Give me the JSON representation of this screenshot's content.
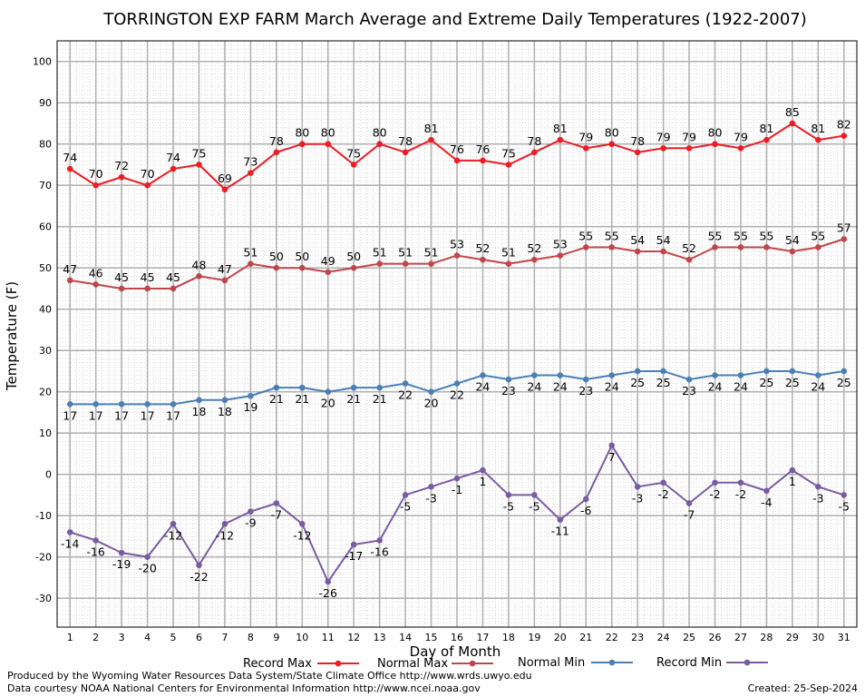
{
  "chart_data": {
    "type": "line",
    "title": "TORRINGTON EXP FARM March Average and Extreme Daily Temperatures (1922-2007)",
    "xlabel": "Day of Month",
    "ylabel": "Temperature (F)",
    "xlim": [
      0.5,
      31.5
    ],
    "ylim": [
      -37,
      105
    ],
    "yticks": [
      -30,
      -20,
      -10,
      0,
      10,
      20,
      30,
      40,
      50,
      60,
      70,
      80,
      90,
      100
    ],
    "x": [
      1,
      2,
      3,
      4,
      5,
      6,
      7,
      8,
      9,
      10,
      11,
      12,
      13,
      14,
      15,
      16,
      17,
      18,
      19,
      20,
      21,
      22,
      23,
      24,
      25,
      26,
      27,
      28,
      29,
      30,
      31
    ],
    "grid": true,
    "legend_position": "bottom",
    "series": [
      {
        "name": "Record Max",
        "color": "#ee1c24",
        "label_pos": "above",
        "values": [
          74,
          70,
          72,
          70,
          74,
          75,
          69,
          73,
          78,
          80,
          80,
          75,
          80,
          78,
          81,
          76,
          76,
          75,
          78,
          81,
          79,
          80,
          78,
          79,
          79,
          80,
          79,
          81,
          85,
          81,
          82
        ]
      },
      {
        "name": "Normal Max",
        "color": "#c0464b",
        "label_pos": "above",
        "values": [
          47,
          46,
          45,
          45,
          45,
          48,
          47,
          51,
          50,
          50,
          49,
          50,
          51,
          51,
          51,
          53,
          52,
          51,
          52,
          53,
          55,
          55,
          54,
          54,
          52,
          55,
          55,
          55,
          54,
          55,
          57
        ]
      },
      {
        "name": "Normal Min",
        "color": "#4a7fb5",
        "label_pos": "below",
        "values": [
          17,
          17,
          17,
          17,
          17,
          18,
          18,
          19,
          21,
          21,
          20,
          21,
          21,
          22,
          20,
          22,
          24,
          23,
          24,
          24,
          23,
          24,
          25,
          25,
          23,
          24,
          24,
          25,
          25,
          24,
          25
        ]
      },
      {
        "name": "Record Min",
        "color": "#7a5ba3",
        "label_pos": "below",
        "values": [
          -14,
          -16,
          -19,
          -20,
          -12,
          -22,
          -12,
          -9,
          -7,
          -12,
          -26,
          -17,
          -16,
          -5,
          -3,
          -1,
          1,
          -5,
          -5,
          -11,
          -6,
          7,
          -3,
          -2,
          -7,
          -2,
          -2,
          -4,
          1,
          -3,
          -5
        ]
      }
    ]
  },
  "footer": {
    "credit_line1": "Produced by the Wyoming Water Resources Data System/State Climate Office http://www.wrds.uwyo.edu",
    "credit_line2": "Data courtesy NOAA National Centers for Environmental Information http://www.ncei.noaa.gov",
    "created": "Created:  25-Sep-2024"
  }
}
